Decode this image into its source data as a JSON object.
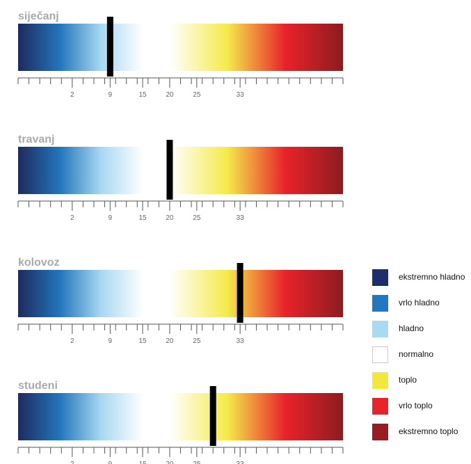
{
  "scale": {
    "min": -8,
    "max": 52,
    "minor_tick_step": 2,
    "tick_labels": [
      {
        "value": 2,
        "text": "2"
      },
      {
        "value": 9,
        "text": "9"
      },
      {
        "value": 15,
        "text": "15"
      },
      {
        "value": 20,
        "text": "20"
      },
      {
        "value": 25,
        "text": "25"
      },
      {
        "value": 33,
        "text": "33"
      }
    ]
  },
  "gradient_stops": {
    "cold": [
      "#1f2a5e",
      "#2275bb",
      "#a8d8f2",
      "#ffffff"
    ],
    "warm": [
      "#ffffff",
      "#f5ea4a",
      "#e8232a",
      "#8c1c20"
    ]
  },
  "bands": {
    "cold": [
      -8,
      15
    ],
    "normal": [
      15,
      20
    ],
    "warm": [
      20,
      52
    ]
  },
  "panels": [
    {
      "title": "siječanj",
      "marker": 9
    },
    {
      "title": "travanj",
      "marker": 20
    },
    {
      "title": "kolovoz",
      "marker": 33
    },
    {
      "title": "studeni",
      "marker": 28
    }
  ],
  "legend": [
    {
      "label": "ekstremno hladno",
      "color": "#1e2d6b"
    },
    {
      "label": "vrlo hladno",
      "color": "#2277bf"
    },
    {
      "label": "hladno",
      "color": "#a9daf3"
    },
    {
      "label": "normalno",
      "color": "#ffffff"
    },
    {
      "label": "toplo",
      "color": "#f3e63c"
    },
    {
      "label": "vrlo toplo",
      "color": "#e8232b"
    },
    {
      "label": "ekstremno toplo",
      "color": "#981c22"
    }
  ]
}
